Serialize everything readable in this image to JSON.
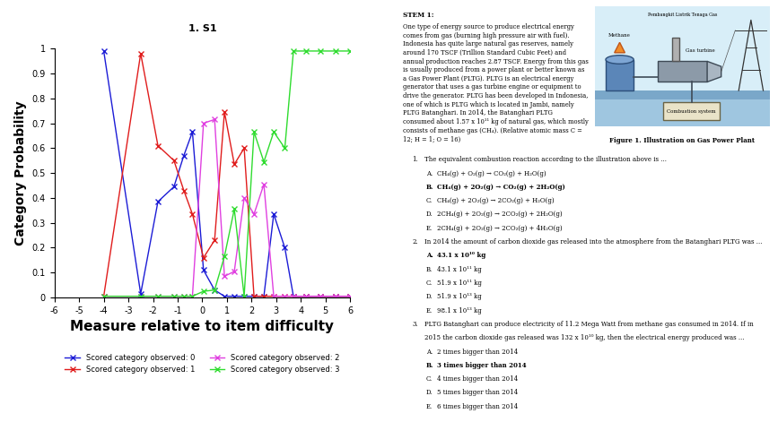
{
  "chart_data": {
    "type": "line",
    "title": "1. S1",
    "x_label": "Measure relative to item difficulty",
    "y_label": "Category Probability",
    "x": [
      -4,
      -2.5,
      -1.8,
      -1.15,
      -0.75,
      -0.4,
      0.05,
      0.5,
      0.9,
      1.3,
      1.7,
      2.1,
      2.5,
      2.9,
      3.35,
      3.7,
      4.2,
      4.8,
      5.4,
      6
    ],
    "series": [
      {
        "name": "Scored category observed: 0",
        "color": "#1c1cd6",
        "marker": "x",
        "line_style": "solid",
        "values": [
          0.99,
          0.015,
          0.385,
          0.445,
          0.57,
          0.665,
          0.11,
          0.03,
          0.005,
          0.005,
          0.005,
          0.005,
          0.005,
          0.335,
          0.2,
          0.005,
          0.005,
          0.005,
          0.005,
          0.005
        ]
      },
      {
        "name": "Scored category observed: 1",
        "color": "#e01c1c",
        "marker": "x",
        "line_style": "solid",
        "values": [
          0.005,
          0.98,
          0.61,
          0.55,
          0.43,
          0.335,
          0.16,
          0.23,
          0.745,
          0.535,
          0.6,
          0.005,
          0.005,
          0.005,
          0.005,
          0.005,
          0.005,
          0.005,
          0.005,
          0.005
        ]
      },
      {
        "name": "Scored category observed: 2",
        "color": "#e040e0",
        "marker": "x",
        "line_style": "solid",
        "values": [
          0.005,
          0.005,
          0.005,
          0.005,
          0.005,
          0.005,
          0.7,
          0.715,
          0.085,
          0.105,
          0.4,
          0.335,
          0.455,
          0.005,
          0.005,
          0.005,
          0.005,
          0.005,
          0.005,
          0.005
        ]
      },
      {
        "name": "Scored category observed: 3",
        "color": "#2fdc2f",
        "marker": "x",
        "line_style": "solid",
        "values": [
          0.005,
          0.005,
          0.005,
          0.005,
          0.005,
          0.005,
          0.025,
          0.03,
          0.165,
          0.355,
          0.005,
          0.665,
          0.545,
          0.665,
          0.6,
          0.99,
          0.99,
          0.99,
          0.99,
          0.99
        ]
      }
    ],
    "xlim": [
      -6,
      6
    ],
    "xticks": [
      -6,
      -5,
      -4,
      -3,
      -2,
      -1,
      0,
      1,
      2,
      3,
      4,
      5,
      6
    ],
    "ylim": [
      0,
      1
    ],
    "yticks": [
      0,
      0.1,
      0.2,
      0.3,
      0.4,
      0.5,
      0.6,
      0.7,
      0.8,
      0.9,
      1
    ],
    "grid": false,
    "legend": "bottom"
  },
  "document": {
    "stem": {
      "heading": "STEM 1:",
      "lines": [
        "One type of energy source to produce electrical energy",
        "comes from gas (burning high pressure air with fuel).",
        "Indonesia has quite large natural gas reserves, namely",
        "around 170 TSCF (Trillion Standard Cubic Feet) and",
        "annual production reaches 2.87 TSCF. Energy from this gas",
        "is usually produced from a power plant or better known as",
        "a Gas Power Plant (PLTG). PLTG is an electrical energy",
        "generator that uses a gas turbine engine or equipment to",
        "drive the generator. PLTG has been developed in Indonesia,",
        "one of which is PLTG which is located in Jambi, namely",
        "PLTG Batanghari. In 2014, the Batanghari PLTG",
        "consumed about 1.57 x 10¹¹ kg of natural gas, which mostly",
        "consists of methane gas (CH₄). (Relative atomic mass C =",
        "12; H = 1; O = 16)"
      ]
    },
    "figure": {
      "top_label": "Pembangkit Listrik Tenaga Gas",
      "methane": "Methane",
      "turbine": "Gas turbine",
      "combustion": "Combustion system",
      "caption": "Figure 1. Illustration on Gas Power Plant"
    },
    "questions": [
      {
        "number": "1.",
        "lines": [
          "The equivalent combustion reaction according to the illustration above is ..."
        ],
        "options": [
          {
            "letter": "A.",
            "text": "CH₄(g) + O₂(g) → CO₂(g) + H₂O(g)"
          },
          {
            "letter": "B.",
            "text": "CH₄(g) + 2O₂(g) → CO₂(g) + 2H₂O(g)"
          },
          {
            "letter": "C.",
            "text": "CH₄(g) + 2O₂(g) → 2CO₂(g) + H₂O(g)"
          },
          {
            "letter": "D.",
            "text": "2CH₄(g) + 2O₂(g) → 2CO₂(g) + 2H₂O(g)"
          },
          {
            "letter": "E.",
            "text": "2CH₄(g) + 2O₂(g) → 2CO₂(g) + 4H₂O(g)"
          }
        ],
        "answer": "B."
      },
      {
        "number": "2.",
        "lines": [
          "In 2014 the amount of carbon dioxide gas released into the atmosphere from the Batanghari PLTG was ..."
        ],
        "options": [
          {
            "letter": "A.",
            "text": "43.1 x 10¹⁰ kg"
          },
          {
            "letter": "B.",
            "text": "43.1 x 10¹¹ kg"
          },
          {
            "letter": "C.",
            "text": "51.9 x 10¹¹ kg"
          },
          {
            "letter": "D.",
            "text": "51.9 x 10¹³ kg"
          },
          {
            "letter": "E.",
            "text": "98.1 x 10¹³ kg"
          }
        ],
        "answer": "A."
      },
      {
        "number": "3.",
        "lines": [
          "PLTG Batanghari can produce electricity of 11.2 Mega Watt from methane gas consumed in 2014. If in",
          "2015 the carbon dioxide gas released was 132 x 10¹⁰ kg, then the electrical energy produced was ..."
        ],
        "options": [
          {
            "letter": "A.",
            "text": "2 times bigger than 2014"
          },
          {
            "letter": "B.",
            "text": "3 times bigger than 2014"
          },
          {
            "letter": "C.",
            "text": "4 times bigger than 2014"
          },
          {
            "letter": "D.",
            "text": "5 times bigger than 2014"
          },
          {
            "letter": "E.",
            "text": "6 times bigger than 2014"
          }
        ],
        "answer": "B."
      }
    ]
  }
}
